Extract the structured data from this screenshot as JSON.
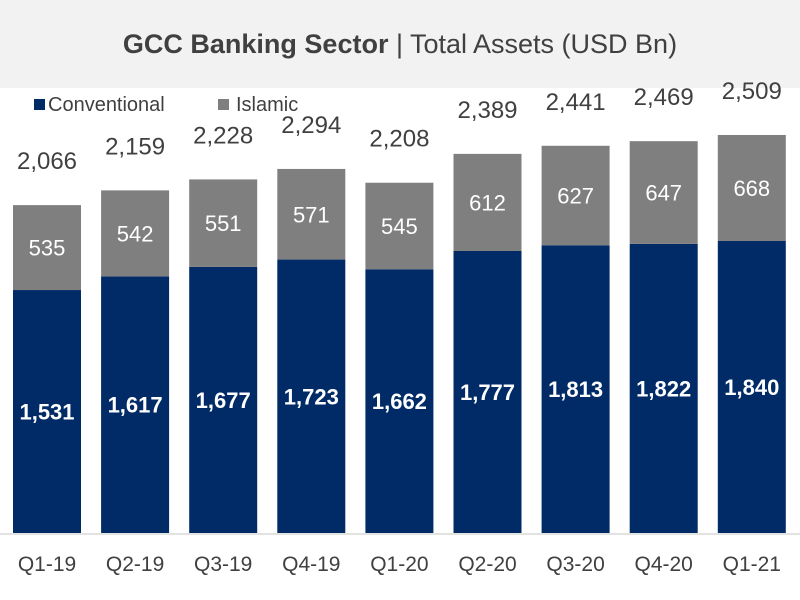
{
  "header": {
    "title_bold": "GCC Banking Sector",
    "title_rest": " | Total Assets (USD Bn)"
  },
  "chart_data": {
    "type": "bar",
    "stacked": true,
    "title": "GCC Banking Sector | Total Assets (USD Bn)",
    "xlabel": "",
    "ylabel": "",
    "ylim": [
      0,
      2600
    ],
    "grid": false,
    "legend_position": "top-left",
    "categories": [
      "Q1-19",
      "Q2-19",
      "Q3-19",
      "Q4-19",
      "Q1-20",
      "Q2-20",
      "Q3-20",
      "Q4-20",
      "Q1-21"
    ],
    "series": [
      {
        "name": "Conventional",
        "color": "#002b67",
        "values": [
          1531,
          1617,
          1677,
          1723,
          1662,
          1777,
          1813,
          1822,
          1840
        ],
        "labels": [
          "1,531",
          "1,617",
          "1,677",
          "1,723",
          "1,662",
          "1,777",
          "1,813",
          "1,822",
          "1,840"
        ]
      },
      {
        "name": "Islamic",
        "color": "#7f7f7f",
        "values": [
          535,
          542,
          551,
          571,
          545,
          612,
          627,
          647,
          668
        ],
        "labels": [
          "535",
          "542",
          "551",
          "571",
          "545",
          "612",
          "627",
          "647",
          "668"
        ]
      }
    ],
    "totals": [
      2066,
      2159,
      2228,
      2294,
      2208,
      2389,
      2441,
      2469,
      2509
    ],
    "total_labels": [
      "2,066",
      "2,159",
      "2,228",
      "2,294",
      "2,208",
      "2,389",
      "2,441",
      "2,469",
      "2,509"
    ]
  }
}
